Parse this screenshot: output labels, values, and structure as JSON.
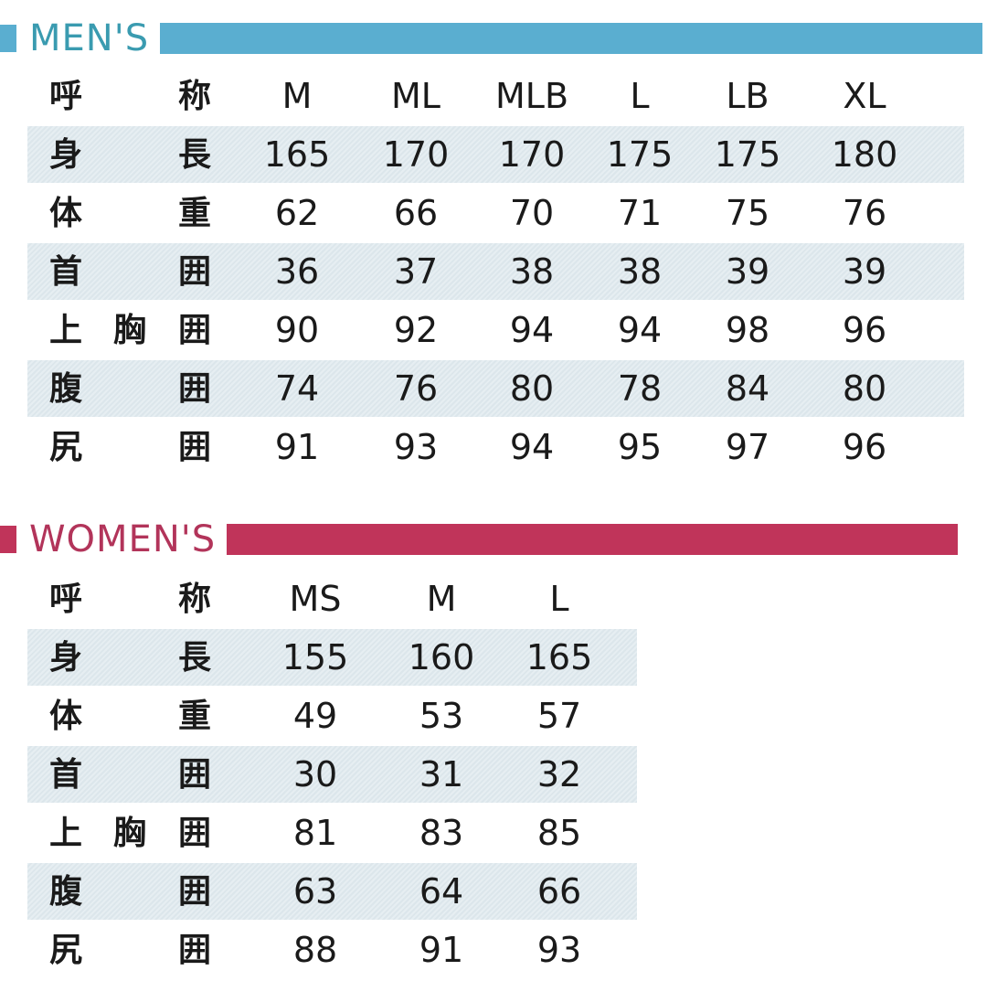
{
  "colors": {
    "mens": "#5aaed0",
    "mens_text": "#3a9bb0",
    "womens": "#c0345a",
    "womens_text": "#b2345a"
  },
  "mens": {
    "title": "MEN'S",
    "header": {
      "label": [
        "呼",
        "称"
      ],
      "sizes": [
        "M",
        "ML",
        "MLB",
        "L",
        "LB",
        "XL"
      ]
    },
    "rows": [
      {
        "label": [
          "身",
          "長"
        ],
        "values": [
          "165",
          "170",
          "170",
          "175",
          "175",
          "180"
        ]
      },
      {
        "label": [
          "体",
          "重"
        ],
        "values": [
          "62",
          "66",
          "70",
          "71",
          "75",
          "76"
        ]
      },
      {
        "label": [
          "首",
          "囲"
        ],
        "values": [
          "36",
          "37",
          "38",
          "38",
          "39",
          "39"
        ]
      },
      {
        "label": [
          "上",
          "胸",
          "囲"
        ],
        "values": [
          "90",
          "92",
          "94",
          "94",
          "98",
          "96"
        ]
      },
      {
        "label": [
          "腹",
          "囲"
        ],
        "values": [
          "74",
          "76",
          "80",
          "78",
          "84",
          "80"
        ]
      },
      {
        "label": [
          "尻",
          "囲"
        ],
        "values": [
          "91",
          "93",
          "94",
          "95",
          "97",
          "96"
        ]
      }
    ]
  },
  "womens": {
    "title": "WOMEN'S",
    "header": {
      "label": [
        "呼",
        "称"
      ],
      "sizes": [
        "MS",
        "M",
        "L"
      ]
    },
    "rows": [
      {
        "label": [
          "身",
          "長"
        ],
        "values": [
          "155",
          "160",
          "165"
        ]
      },
      {
        "label": [
          "体",
          "重"
        ],
        "values": [
          "49",
          "53",
          "57"
        ]
      },
      {
        "label": [
          "首",
          "囲"
        ],
        "values": [
          "30",
          "31",
          "32"
        ]
      },
      {
        "label": [
          "上",
          "胸",
          "囲"
        ],
        "values": [
          "81",
          "83",
          "85"
        ]
      },
      {
        "label": [
          "腹",
          "囲"
        ],
        "values": [
          "63",
          "64",
          "66"
        ]
      },
      {
        "label": [
          "尻",
          "囲"
        ],
        "values": [
          "88",
          "91",
          "93"
        ]
      }
    ]
  }
}
